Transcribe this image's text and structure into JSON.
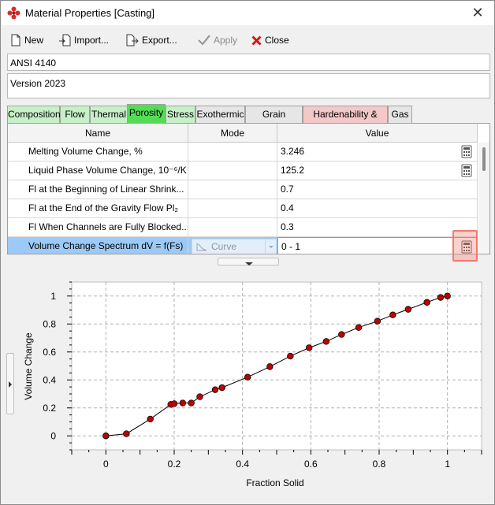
{
  "window": {
    "title": "Material Properties [Casting]"
  },
  "toolbar": {
    "new_label": "New",
    "import_label": "Import...",
    "export_label": "Export...",
    "apply_label": "Apply",
    "close_label": "Close"
  },
  "material": {
    "name": "ANSI 4140",
    "version": "Version 2023"
  },
  "tabs": [
    {
      "label": "Composition",
      "style": "green"
    },
    {
      "label": "Flow",
      "style": "green"
    },
    {
      "label": "Thermal",
      "style": "green"
    },
    {
      "label": "Porosity",
      "style": "active"
    },
    {
      "label": "Stress",
      "style": "green"
    },
    {
      "label": "Exothermic",
      "style": "plain"
    },
    {
      "label": "Grain Growth",
      "style": "plain"
    },
    {
      "label": "Hardenability & CCT",
      "style": "pink"
    },
    {
      "label": "Gas",
      "style": "plain"
    }
  ],
  "table": {
    "headers": {
      "name": "Name",
      "mode": "Mode",
      "value": "Value"
    },
    "rows": [
      {
        "name": "Melting Volume Change, %",
        "mode": "",
        "value": "3.246",
        "calc": true
      },
      {
        "name": "Liquid Phase Volume Change, 10⁻⁶/K",
        "mode": "",
        "value": "125.2",
        "calc": true
      },
      {
        "name": "Fl at the Beginning of Linear Shrink...",
        "mode": "",
        "value": "0.7",
        "calc": false
      },
      {
        "name": "Fl at the End of the Gravity Flow Pl₂",
        "mode": "",
        "value": "0.4",
        "calc": false
      },
      {
        "name": "Fl When Channels are Fully Blocked...",
        "mode": "",
        "value": "0.3",
        "calc": false
      },
      {
        "name": "Volume Change Spectrum dV = f(Fs)",
        "mode": "Curve",
        "value": "0 - 1",
        "calc": true,
        "selected": true
      }
    ]
  },
  "chart_data": {
    "type": "line",
    "xlabel": "Fraction Solid",
    "ylabel": "Volume Change",
    "xlim": [
      -0.1,
      1.1
    ],
    "ylim": [
      -0.1,
      1.1
    ],
    "xticks": [
      "0",
      "0.2",
      "0.4",
      "0.6",
      "0.8",
      "1"
    ],
    "yticks": [
      "0",
      "0.2",
      "0.4",
      "0.6",
      "0.8",
      "1"
    ],
    "grid": true,
    "line_color": "#000000",
    "marker_color": "#c00000",
    "x": [
      0.0,
      0.06,
      0.13,
      0.19,
      0.2,
      0.225,
      0.25,
      0.275,
      0.32,
      0.34,
      0.415,
      0.48,
      0.54,
      0.595,
      0.645,
      0.69,
      0.74,
      0.795,
      0.84,
      0.885,
      0.94,
      0.98,
      1.0
    ],
    "y": [
      0.0,
      0.015,
      0.12,
      0.225,
      0.23,
      0.235,
      0.235,
      0.28,
      0.33,
      0.345,
      0.42,
      0.495,
      0.57,
      0.63,
      0.675,
      0.725,
      0.775,
      0.82,
      0.865,
      0.905,
      0.955,
      0.99,
      1.0
    ]
  }
}
